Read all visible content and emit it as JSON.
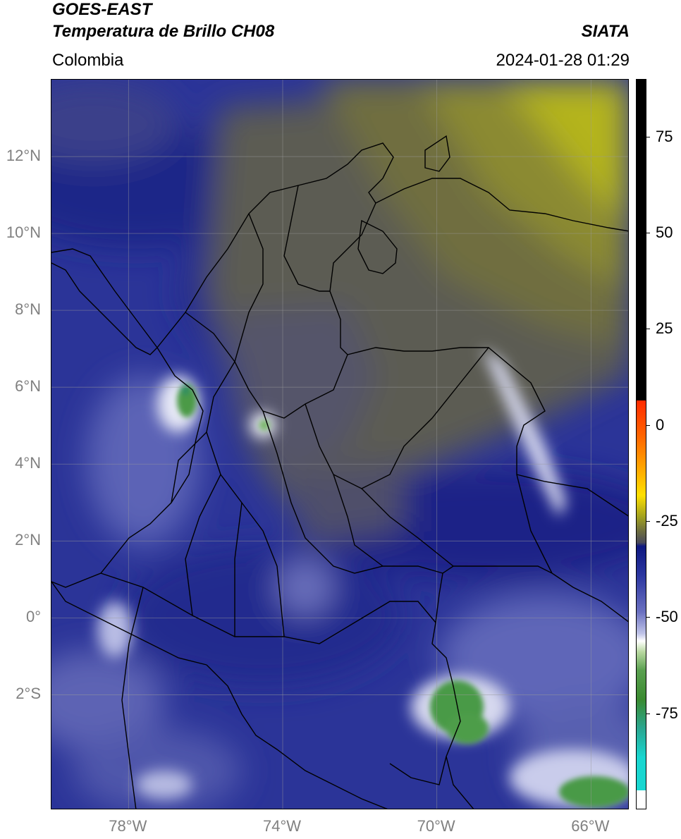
{
  "header": {
    "title": "GOES-EAST",
    "subtitle": "Temperatura de Brillo CH08",
    "agency": "SIATA",
    "region": "Colombia",
    "datetime": "2024-01-28 01:29"
  },
  "map": {
    "lon_range": [
      -80,
      -65
    ],
    "lat_range": [
      -5,
      14
    ],
    "lat_ticks": [
      {
        "value": 12,
        "label": "12°N"
      },
      {
        "value": 10,
        "label": "10°N"
      },
      {
        "value": 8,
        "label": "8°N"
      },
      {
        "value": 6,
        "label": "6°N"
      },
      {
        "value": 4,
        "label": "4°N"
      },
      {
        "value": 2,
        "label": "2°N"
      },
      {
        "value": 0,
        "label": "0°"
      },
      {
        "value": -2,
        "label": "2°S"
      }
    ],
    "lon_ticks": [
      {
        "value": -78,
        "label": "78°W"
      },
      {
        "value": -74,
        "label": "74°W"
      },
      {
        "value": -70,
        "label": "70°W"
      },
      {
        "value": -66,
        "label": "66°W"
      }
    ],
    "gridlines": true
  },
  "colorbar": {
    "range": [
      -100,
      90
    ],
    "ticks": [
      {
        "value": 75,
        "label": "75"
      },
      {
        "value": 50,
        "label": "50"
      },
      {
        "value": 25,
        "label": "25"
      },
      {
        "value": 0,
        "label": "0"
      },
      {
        "value": -25,
        "label": "-25"
      },
      {
        "value": -50,
        "label": "-50"
      },
      {
        "value": -75,
        "label": "-75"
      }
    ]
  },
  "colors": {
    "deep_blue": "#1c2590",
    "mid_blue": "#3a45a8",
    "gray_olive": "#5e5d4a",
    "olive": "#8a8a32",
    "yellow_olive": "#b8b81c",
    "white": "#ffffff",
    "green": "#4a9a46",
    "cyan": "#19d6d0",
    "red": "#ff2a00",
    "black": "#000000"
  }
}
